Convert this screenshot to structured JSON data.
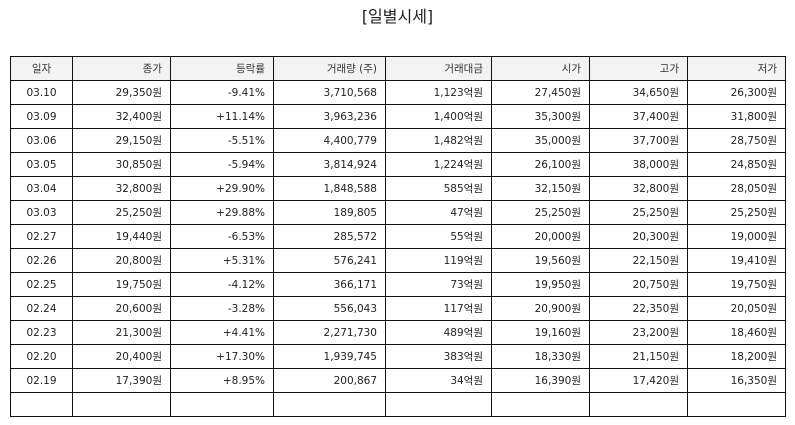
{
  "title": "[일별시세]",
  "columns": [
    "일자",
    "종가",
    "등락률",
    "거래량 (주)",
    "거래대금",
    "시가",
    "고가",
    "저가"
  ],
  "colors": {
    "up": "#e0302a",
    "down": "#2b2bbf"
  },
  "rows": [
    {
      "date": "03.10",
      "close": "29,350원",
      "change": "-9.41%",
      "dir": "down",
      "volume": "3,710,568",
      "amount": "1,123억원",
      "open": "27,450원",
      "high": "34,650원",
      "low": "26,300원"
    },
    {
      "date": "03.09",
      "close": "32,400원",
      "change": "+11.14%",
      "dir": "up",
      "volume": "3,963,236",
      "amount": "1,400억원",
      "open": "35,300원",
      "high": "37,400원",
      "low": "31,800원"
    },
    {
      "date": "03.06",
      "close": "29,150원",
      "change": "-5.51%",
      "dir": "down",
      "volume": "4,400,779",
      "amount": "1,482억원",
      "open": "35,000원",
      "high": "37,700원",
      "low": "28,750원"
    },
    {
      "date": "03.05",
      "close": "30,850원",
      "change": "-5.94%",
      "dir": "down",
      "volume": "3,814,924",
      "amount": "1,224억원",
      "open": "26,100원",
      "high": "38,000원",
      "low": "24,850원"
    },
    {
      "date": "03.04",
      "close": "32,800원",
      "change": "+29.90%",
      "dir": "up",
      "volume": "1,848,588",
      "amount": "585억원",
      "open": "32,150원",
      "high": "32,800원",
      "low": "28,050원"
    },
    {
      "date": "03.03",
      "close": "25,250원",
      "change": "+29.88%",
      "dir": "up",
      "volume": "189,805",
      "amount": "47억원",
      "open": "25,250원",
      "high": "25,250원",
      "low": "25,250원"
    },
    {
      "date": "02.27",
      "close": "19,440원",
      "change": "-6.53%",
      "dir": "down",
      "volume": "285,572",
      "amount": "55억원",
      "open": "20,000원",
      "high": "20,300원",
      "low": "19,000원"
    },
    {
      "date": "02.26",
      "close": "20,800원",
      "change": "+5.31%",
      "dir": "up",
      "volume": "576,241",
      "amount": "119억원",
      "open": "19,560원",
      "high": "22,150원",
      "low": "19,410원"
    },
    {
      "date": "02.25",
      "close": "19,750원",
      "change": "-4.12%",
      "dir": "down",
      "volume": "366,171",
      "amount": "73억원",
      "open": "19,950원",
      "high": "20,750원",
      "low": "19,750원"
    },
    {
      "date": "02.24",
      "close": "20,600원",
      "change": "-3.28%",
      "dir": "down",
      "volume": "556,043",
      "amount": "117억원",
      "open": "20,900원",
      "high": "22,350원",
      "low": "20,050원"
    },
    {
      "date": "02.23",
      "close": "21,300원",
      "change": "+4.41%",
      "dir": "up",
      "volume": "2,271,730",
      "amount": "489억원",
      "open": "19,160원",
      "high": "23,200원",
      "low": "18,460원"
    },
    {
      "date": "02.20",
      "close": "20,400원",
      "change": "+17.30%",
      "dir": "up",
      "volume": "1,939,745",
      "amount": "383억원",
      "open": "18,330원",
      "high": "21,150원",
      "low": "18,200원"
    },
    {
      "date": "02.19",
      "close": "17,390원",
      "change": "+8.95%",
      "dir": "up",
      "volume": "200,867",
      "amount": "34억원",
      "open": "16,390원",
      "high": "17,420원",
      "low": "16,350원"
    },
    {
      "date": "",
      "close": "",
      "change": "",
      "dir": "",
      "volume": "",
      "amount": "",
      "open": "",
      "high": "",
      "low": ""
    }
  ]
}
